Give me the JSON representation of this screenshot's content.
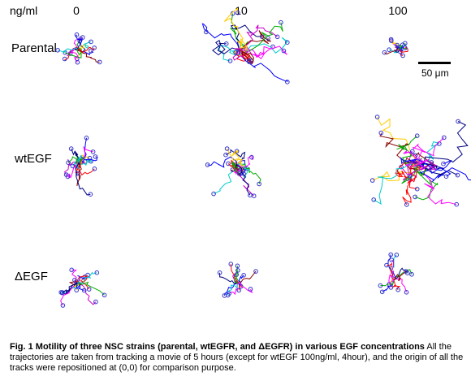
{
  "header": {
    "unit": "ng/ml"
  },
  "columns": [
    {
      "label": "0"
    },
    {
      "label": "10"
    },
    {
      "label": "100"
    }
  ],
  "rows": [
    {
      "label": "Parental"
    },
    {
      "label": "wtEGF"
    },
    {
      "label": "ΔEGF"
    }
  ],
  "scale_bar": {
    "label": "50 μm",
    "value_um": 50
  },
  "caption": {
    "bold": "Fig. 1 Motility of three NSC strains (parental, wtEGFR, and ΔEGFR) in various EGF concentrations",
    "text": "All the trajectories are taken from tracking a movie of 5 hours (except for wtEGF 100ng/ml, 4hour), and the origin of all the tracks were repositioned at (0,0) for comparison  purpose."
  },
  "colors": {
    "tracks": [
      "#ff0000",
      "#0000ff",
      "#00aa00",
      "#ff00ff",
      "#00cccc",
      "#000080",
      "#ffcc00",
      "#cc00cc",
      "#880000"
    ],
    "endpoint": "#3333cc"
  }
}
